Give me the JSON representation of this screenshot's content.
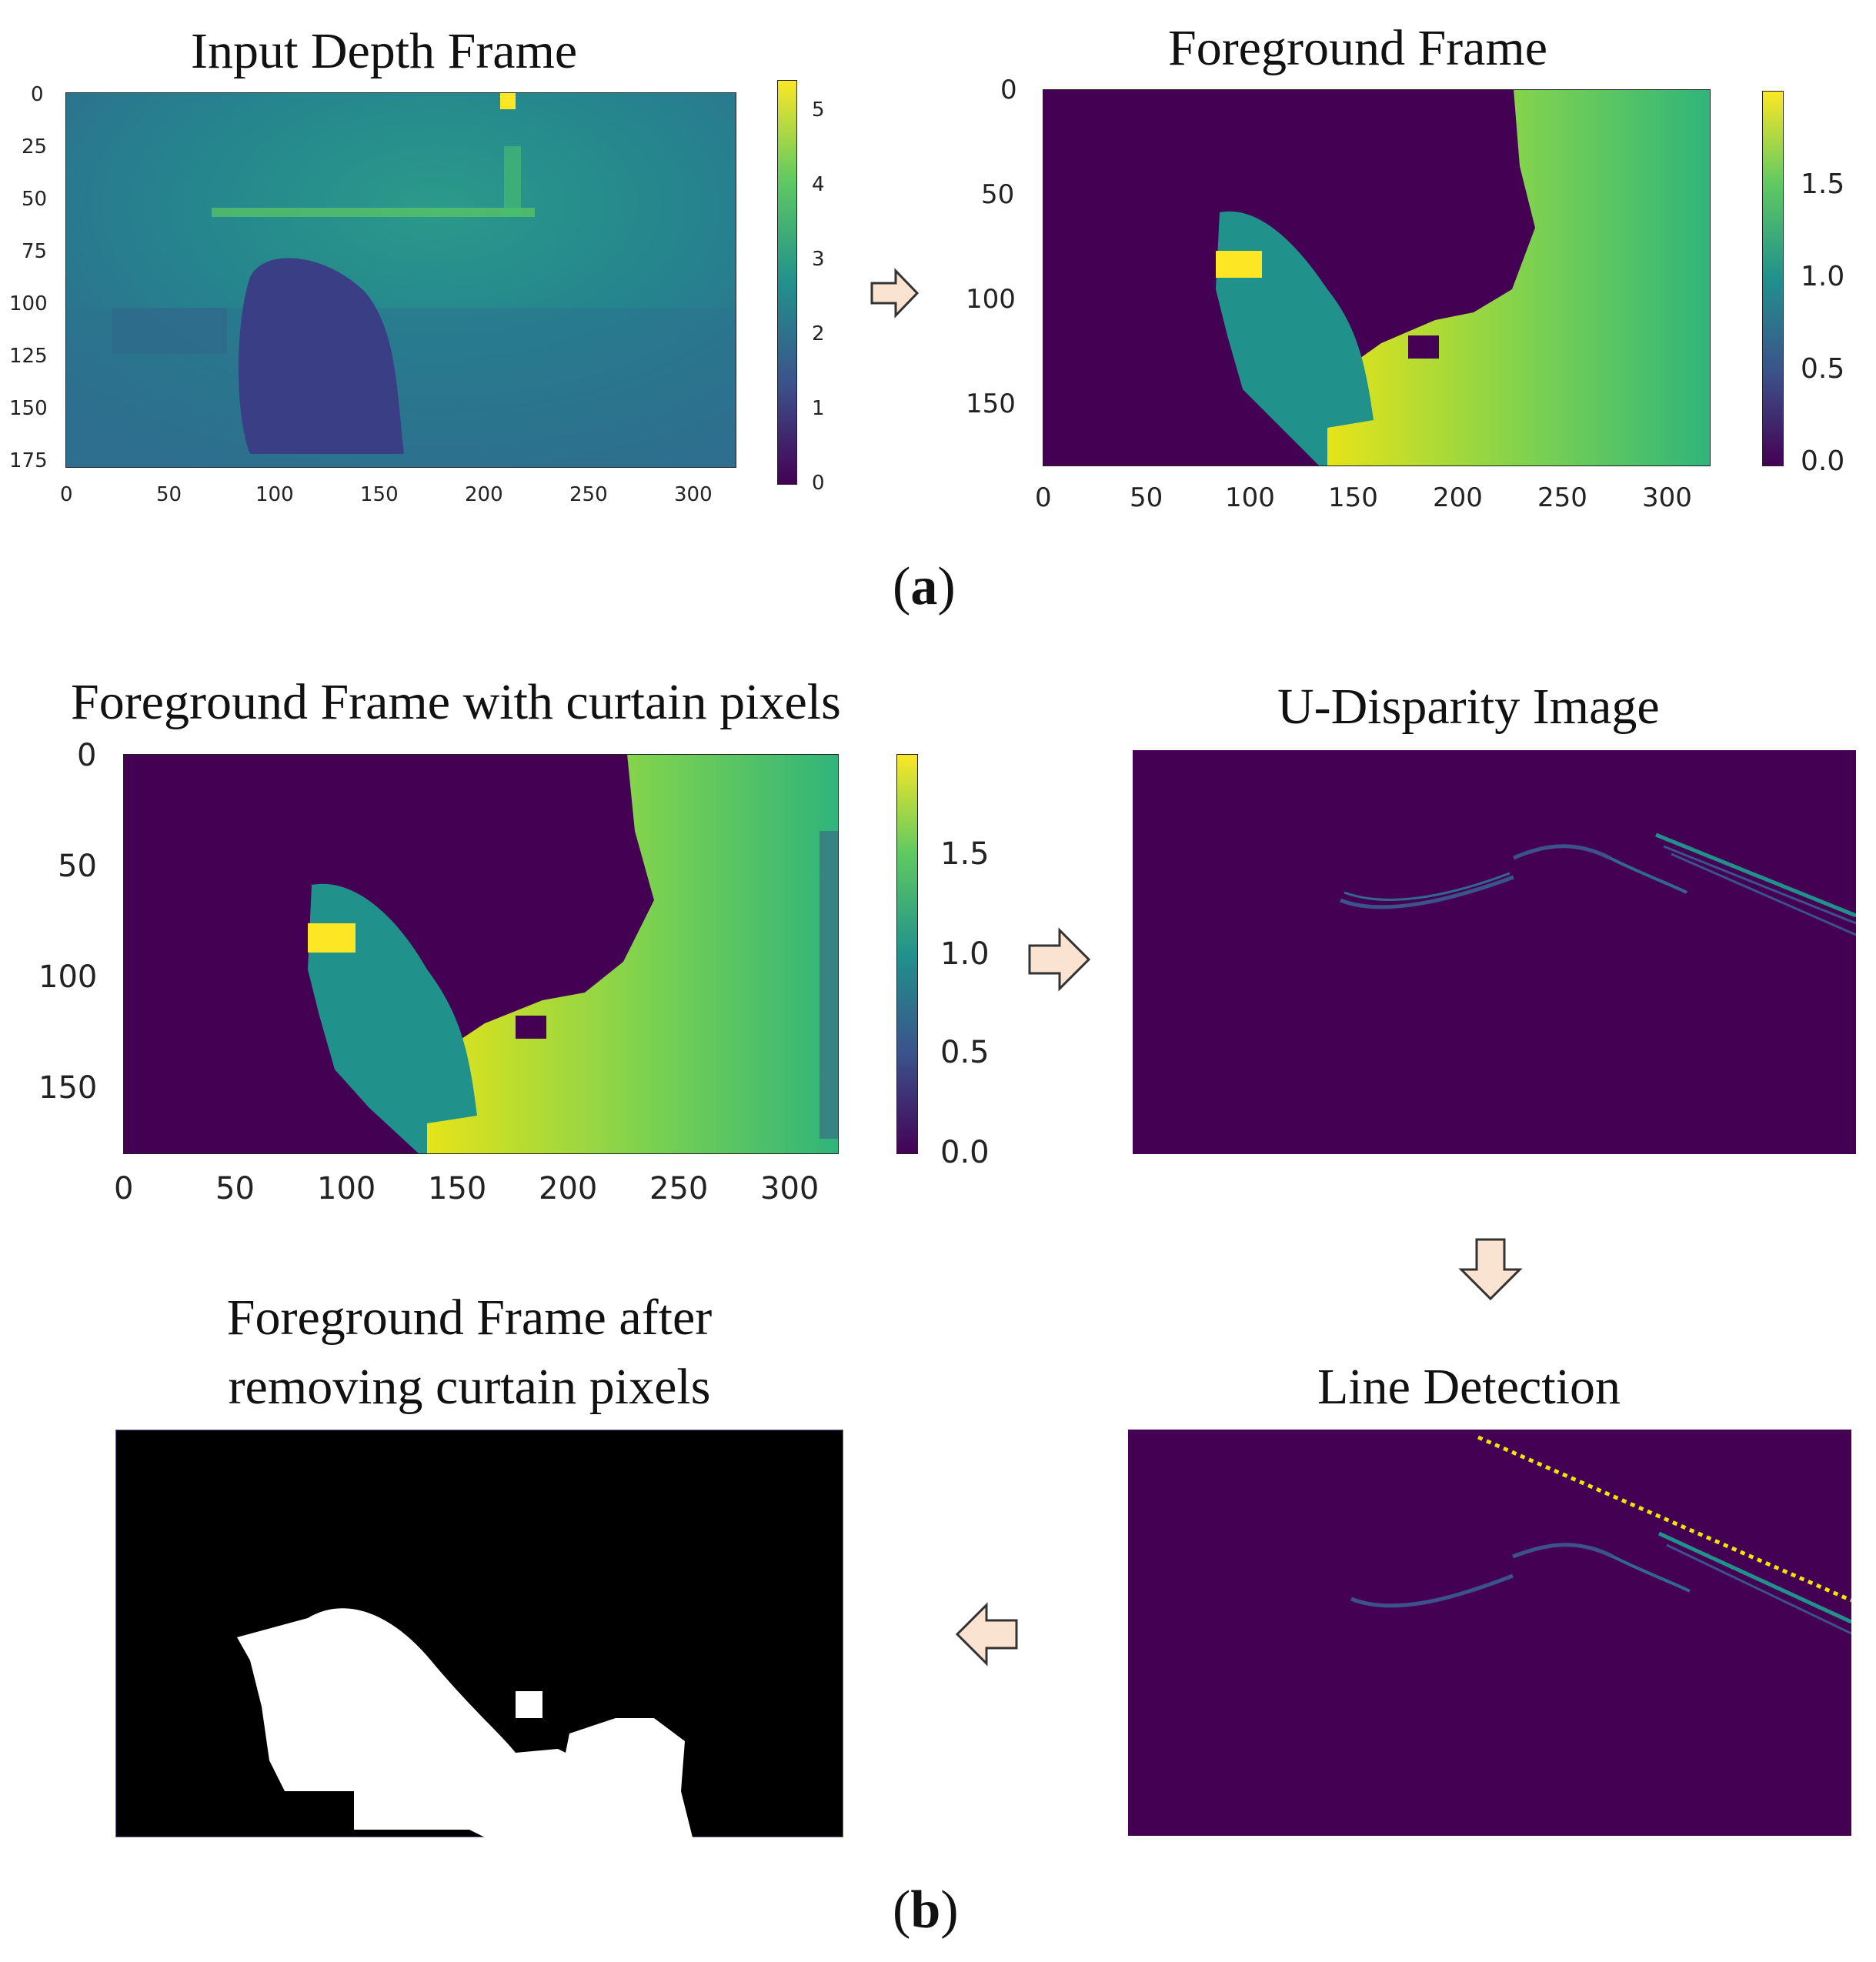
{
  "panel_a": {
    "label_open": "(",
    "label_letter": "a",
    "label_close": ")",
    "plot_input": {
      "title": "Input Depth Frame",
      "y_ticks": [
        "0",
        "25",
        "50",
        "75",
        "100",
        "125",
        "150",
        "175"
      ],
      "x_ticks": [
        "0",
        "50",
        "100",
        "150",
        "200",
        "250",
        "300"
      ],
      "colorbar_ticks": [
        "5",
        "4",
        "3",
        "2",
        "1",
        "0"
      ]
    },
    "plot_foreground": {
      "title": "Foreground Frame",
      "y_ticks": [
        "0",
        "50",
        "100",
        "150"
      ],
      "x_ticks": [
        "0",
        "50",
        "100",
        "150",
        "200",
        "250",
        "300"
      ],
      "colorbar_ticks": [
        "1.5",
        "1.0",
        "0.5",
        "0.0"
      ]
    }
  },
  "panel_b": {
    "label_open": "(",
    "label_letter": "b",
    "label_close": ")",
    "plot_curtain": {
      "title": "Foreground Frame with curtain pixels",
      "y_ticks": [
        "0",
        "50",
        "100",
        "150"
      ],
      "x_ticks": [
        "0",
        "50",
        "100",
        "150",
        "200",
        "250",
        "300"
      ],
      "colorbar_ticks": [
        "1.5",
        "1.0",
        "0.5",
        "0.0"
      ]
    },
    "udisparity": {
      "title": "U-Disparity Image"
    },
    "line_detection": {
      "title": "Line Detection"
    },
    "mask": {
      "title_line1": "Foreground Frame after",
      "title_line2": "removing curtain pixels"
    }
  },
  "colors": {
    "viridis_dark": "#440154",
    "viridis_blue": "#3b528b",
    "viridis_teal": "#21918c",
    "viridis_green": "#5ec962",
    "viridis_yellow": "#fde725",
    "arrow_fill": "#fbe3d2",
    "detected_line": "#f2e600",
    "mask_bg": "#000000",
    "mask_fg": "#ffffff"
  }
}
